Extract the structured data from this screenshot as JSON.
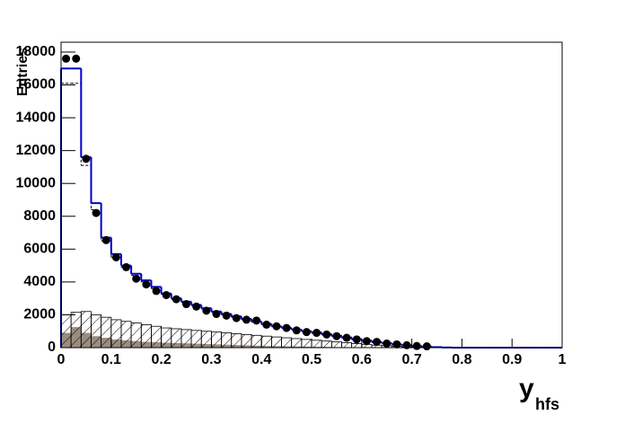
{
  "chart_data": {
    "type": "histogram",
    "y_label": "Entries",
    "x_label": "y",
    "x_label_subscript": "hfs",
    "bins": [
      0,
      0.02,
      0.04,
      0.06,
      0.08,
      0.1,
      0.12,
      0.14,
      0.16,
      0.18,
      0.2,
      0.22,
      0.24,
      0.26,
      0.28,
      0.3,
      0.32,
      0.34,
      0.36,
      0.38,
      0.4,
      0.42,
      0.44,
      0.46,
      0.48,
      0.5,
      0.52,
      0.54,
      0.56,
      0.58,
      0.6,
      0.62,
      0.64,
      0.66,
      0.68,
      0.7,
      0.72,
      0.74,
      0.76,
      0.78,
      0.8,
      0.82,
      0.84,
      0.86,
      0.88,
      0.9,
      0.92,
      0.94,
      0.96,
      0.98,
      1
    ],
    "series": [
      {
        "style": "fill",
        "color": "#9a8c80",
        "values": [
          900,
          1250,
          900,
          700,
          600,
          500,
          450,
          400,
          350,
          330,
          300,
          280,
          260,
          240,
          220,
          200,
          180,
          160,
          140,
          120,
          100,
          90,
          80,
          70,
          60,
          50,
          40,
          30,
          20,
          10,
          0,
          0,
          0,
          0,
          0,
          0,
          0,
          0,
          0,
          0,
          0,
          0,
          0,
          0,
          0,
          0,
          0,
          0,
          0,
          0
        ]
      },
      {
        "style": "hatch",
        "color": "#000000",
        "values": [
          2000,
          2150,
          2200,
          2000,
          1850,
          1700,
          1600,
          1500,
          1400,
          1300,
          1200,
          1150,
          1100,
          1050,
          1000,
          950,
          900,
          850,
          800,
          750,
          700,
          650,
          600,
          550,
          500,
          450,
          400,
          350,
          300,
          250,
          200,
          150,
          120,
          80,
          50,
          30,
          20,
          10,
          0,
          0,
          0,
          0,
          0,
          0,
          0,
          0,
          0,
          0,
          0,
          0
        ]
      },
      {
        "style": "dashed",
        "color": "#000000",
        "values": [
          16100,
          16100,
          11100,
          8400,
          6500,
          5500,
          4900,
          4400,
          4000,
          3600,
          3250,
          2950,
          2750,
          2550,
          2350,
          2150,
          2000,
          1850,
          1700,
          1550,
          1400,
          1300,
          1200,
          1100,
          1000,
          950,
          850,
          750,
          650,
          550,
          450,
          360,
          280,
          210,
          150,
          100,
          60,
          30,
          10,
          0,
          0,
          0,
          0,
          0,
          0,
          0,
          0,
          0,
          0,
          0
        ]
      },
      {
        "style": "step",
        "color": "#0000cc",
        "values": [
          17000,
          17000,
          11600,
          8800,
          6700,
          5700,
          5000,
          4500,
          4100,
          3700,
          3300,
          3000,
          2800,
          2600,
          2400,
          2200,
          2050,
          1900,
          1750,
          1600,
          1450,
          1300,
          1200,
          1100,
          1000,
          900,
          800,
          700,
          600,
          500,
          420,
          340,
          270,
          200,
          150,
          100,
          60,
          30,
          10,
          0,
          0,
          0,
          0,
          0,
          0,
          0,
          0,
          0,
          0,
          0
        ]
      }
    ],
    "points": {
      "color": "#000000",
      "x": [
        0.01,
        0.03,
        0.05,
        0.07,
        0.09,
        0.11,
        0.13,
        0.15,
        0.17,
        0.19,
        0.21,
        0.23,
        0.25,
        0.27,
        0.29,
        0.31,
        0.33,
        0.35,
        0.37,
        0.39,
        0.41,
        0.43,
        0.45,
        0.47,
        0.49,
        0.51,
        0.53,
        0.55,
        0.57,
        0.59,
        0.61,
        0.63,
        0.65,
        0.67,
        0.69,
        0.71,
        0.73
      ],
      "values": [
        17600,
        17600,
        11500,
        8200,
        6550,
        5500,
        4900,
        4200,
        3850,
        3450,
        3200,
        2950,
        2650,
        2500,
        2250,
        2050,
        1950,
        1800,
        1700,
        1650,
        1400,
        1300,
        1200,
        1050,
        950,
        900,
        800,
        700,
        600,
        500,
        400,
        350,
        250,
        200,
        150,
        100,
        80
      ]
    },
    "xlim": [
      0,
      1
    ],
    "ylim": [
      0,
      18600
    ],
    "xticks": [
      0,
      0.1,
      0.2,
      0.3,
      0.4,
      0.5,
      0.6,
      0.7,
      0.8,
      0.9,
      1
    ],
    "yticks": [
      0,
      2000,
      4000,
      6000,
      8000,
      10000,
      12000,
      14000,
      16000,
      18000
    ]
  }
}
